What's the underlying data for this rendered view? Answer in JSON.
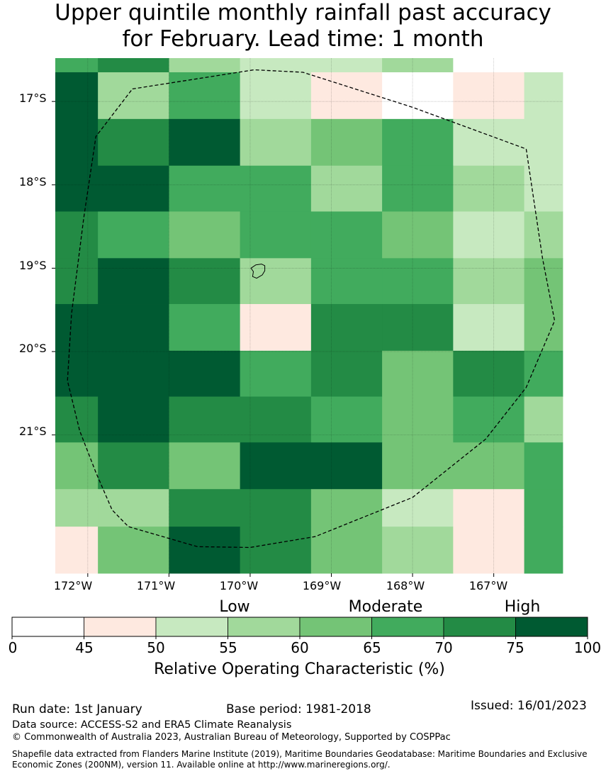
{
  "title": {
    "line1": "Upper quintile monthly rainfall past accuracy",
    "line2": "for February. Lead time: 1 month"
  },
  "map": {
    "lon_ticks": [
      "172°W",
      "171°W",
      "170°W",
      "169°W",
      "168°W",
      "167°W"
    ],
    "lat_ticks": [
      "17°S",
      "18°S",
      "19°S",
      "20°S",
      "21°S"
    ],
    "lon_range": [
      -172.4,
      -166.15
    ],
    "lat_range": [
      -16.48,
      -22.66
    ],
    "grid_columns": [
      -172.4,
      -171.875,
      -171.0,
      -170.125,
      -169.25,
      -168.375,
      -167.5,
      -166.625,
      -166.15
    ],
    "grid_rows": [
      -16.48,
      -16.65,
      -17.21,
      -17.77,
      -18.32,
      -18.88,
      -19.43,
      -19.99,
      -20.54,
      -21.09,
      -21.65,
      -22.1,
      -22.66
    ],
    "cells": [
      [
        "#41ab5d",
        "#238b45",
        "#a1d99b",
        "#c7e9c0",
        "#c7e9c0",
        "#a1d99b",
        "#ffffff",
        "#ffffff"
      ],
      [
        "#005a32",
        "#a1d99b",
        "#41ab5d",
        "#c7e9c0",
        "#fee9e0",
        "#ffffff",
        "#fee9e0",
        "#c7e9c0"
      ],
      [
        "#005a32",
        "#238b45",
        "#005a32",
        "#a1d99b",
        "#74c476",
        "#41ab5d",
        "#c7e9c0",
        "#c7e9c0"
      ],
      [
        "#005a32",
        "#005a32",
        "#41ab5d",
        "#41ab5d",
        "#a1d99b",
        "#41ab5d",
        "#a1d99b",
        "#c7e9c0"
      ],
      [
        "#238b45",
        "#41ab5d",
        "#74c476",
        "#41ab5d",
        "#41ab5d",
        "#74c476",
        "#c7e9c0",
        "#a1d99b"
      ],
      [
        "#238b45",
        "#005a32",
        "#238b45",
        "#a1d99b",
        "#41ab5d",
        "#41ab5d",
        "#a1d99b",
        "#74c476"
      ],
      [
        "#005a32",
        "#005a32",
        "#41ab5d",
        "#fee9e0",
        "#238b45",
        "#238b45",
        "#c7e9c0",
        "#74c476"
      ],
      [
        "#005a32",
        "#005a32",
        "#005a32",
        "#41ab5d",
        "#238b45",
        "#74c476",
        "#238b45",
        "#41ab5d"
      ],
      [
        "#238b45",
        "#005a32",
        "#238b45",
        "#238b45",
        "#41ab5d",
        "#74c476",
        "#41ab5d",
        "#a1d99b"
      ],
      [
        "#74c476",
        "#238b45",
        "#74c476",
        "#005a32",
        "#005a32",
        "#74c476",
        "#74c476",
        "#41ab5d"
      ],
      [
        "#a1d99b",
        "#a1d99b",
        "#238b45",
        "#238b45",
        "#74c476",
        "#c7e9c0",
        "#fee9e0",
        "#41ab5d"
      ],
      [
        "#fee9e0",
        "#74c476",
        "#005a32",
        "#238b45",
        "#74c476",
        "#a1d99b",
        "#fee9e0",
        "#41ab5d"
      ]
    ],
    "eez_boundary": [
      [
        -171.45,
        -16.85
      ],
      [
        -169.95,
        -16.62
      ],
      [
        -169.35,
        -16.65
      ],
      [
        -168.0,
        -17.07
      ],
      [
        -166.6,
        -17.57
      ],
      [
        -166.4,
        -18.88
      ],
      [
        -166.25,
        -19.63
      ],
      [
        -166.6,
        -20.43
      ],
      [
        -167.1,
        -21.05
      ],
      [
        -168.0,
        -21.75
      ],
      [
        -169.2,
        -22.22
      ],
      [
        -170.0,
        -22.35
      ],
      [
        -170.65,
        -22.34
      ],
      [
        -171.5,
        -22.1
      ],
      [
        -171.7,
        -21.9
      ],
      [
        -171.9,
        -21.45
      ],
      [
        -172.1,
        -20.95
      ],
      [
        -172.25,
        -20.35
      ],
      [
        -172.2,
        -19.55
      ],
      [
        -172.05,
        -18.4
      ],
      [
        -171.9,
        -17.42
      ],
      [
        -171.45,
        -16.85
      ]
    ],
    "island_outline": [
      [
        -169.93,
        -18.96
      ],
      [
        -169.86,
        -18.95
      ],
      [
        -169.82,
        -18.97
      ],
      [
        -169.82,
        -19.03
      ],
      [
        -169.85,
        -19.08
      ],
      [
        -169.92,
        -19.12
      ],
      [
        -169.97,
        -19.1
      ],
      [
        -169.96,
        -19.04
      ],
      [
        -169.99,
        -19.0
      ],
      [
        -169.93,
        -18.96
      ]
    ]
  },
  "colorbar": {
    "bounds": [
      0,
      45,
      50,
      55,
      60,
      65,
      70,
      75,
      100
    ],
    "colors": [
      "#ffffff",
      "#fee9e0",
      "#c7e9c0",
      "#a1d99b",
      "#74c476",
      "#41ab5d",
      "#238b45",
      "#005a32"
    ],
    "tick_labels": [
      "0",
      "45",
      "50",
      "55",
      "60",
      "65",
      "70",
      "75",
      "100"
    ],
    "category_labels": {
      "low": "Low",
      "moderate": "Moderate",
      "high": "High"
    },
    "title": "Relative Operating Characteristic (%)"
  },
  "footer": {
    "run_date": "Run date: 1st January",
    "base_period": "Base period: 1981-2018",
    "issued": "Issued: 16/01/2023",
    "data_source": "Data source: ACCESS-S2 and ERA5 Climate Reanalysis",
    "copyright": "© Commonwealth of Australia 2023, Australian Bureau of Meteorology, Supported by COSPPac",
    "shapefile_line1": "Shapefile data extracted from Flanders Marine Institute (2019), Maritime Boundaries Geodatabase: Maritime Boundaries and Exclusive",
    "shapefile_line2": "Economic Zones (200NM), version 11. Available online at http://www.marineregions.org/."
  }
}
